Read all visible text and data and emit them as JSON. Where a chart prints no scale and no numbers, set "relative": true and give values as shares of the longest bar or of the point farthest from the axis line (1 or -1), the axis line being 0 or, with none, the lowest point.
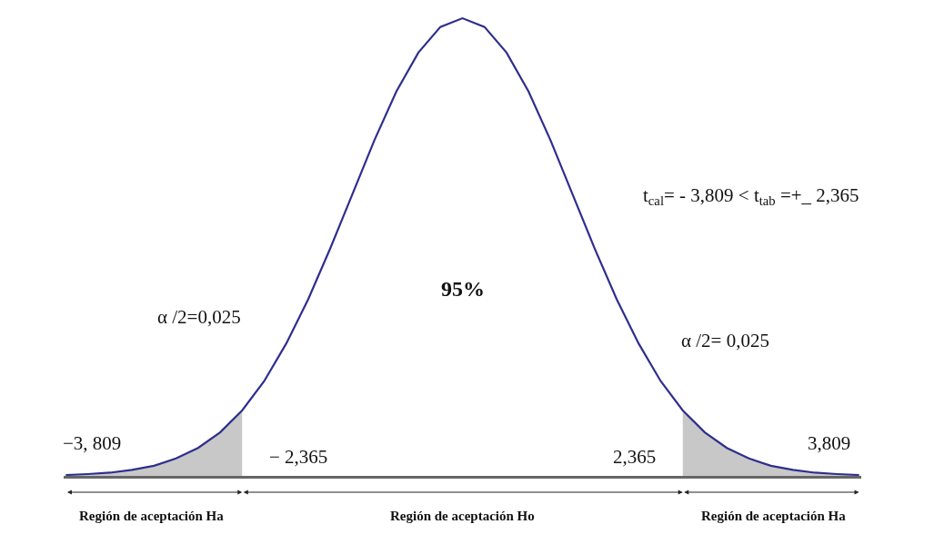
{
  "chart_data": {
    "type": "line",
    "relative": true,
    "marker": "none",
    "line_style": "solid",
    "categories": [
      null,
      null,
      null,
      null,
      null,
      null,
      null,
      null,
      null,
      null,
      null,
      null,
      null,
      null,
      null,
      null,
      null,
      null,
      null,
      null,
      null,
      null,
      null,
      null,
      null,
      null,
      null,
      null,
      null,
      null,
      null,
      null,
      null,
      null,
      null,
      null,
      null
    ],
    "series": [
      {
        "color": "#2e2e8f",
        "values": [
          0.002,
          0.004,
          0.007,
          0.013,
          0.022,
          0.038,
          0.061,
          0.095,
          0.143,
          0.207,
          0.289,
          0.386,
          0.497,
          0.615,
          0.733,
          0.84,
          0.925,
          0.981,
          1,
          0.981,
          0.925,
          0.84,
          0.733,
          0.615,
          0.497,
          0.386,
          0.289,
          0.207,
          0.143,
          0.095,
          0.061,
          0.038,
          0.022,
          0.013,
          0.007,
          0.004,
          0.002
        ]
      },
      {
        "type": "area",
        "color": "#c8c8c8",
        "values": [
          0.002,
          0.004,
          0.007,
          0.013,
          0.022,
          0.038,
          0.061,
          0.095,
          0.143,
          null,
          null,
          null,
          null,
          null,
          null,
          null,
          null,
          null,
          null,
          null,
          null,
          null,
          null,
          null,
          null,
          null,
          null,
          null,
          null,
          null,
          null,
          null,
          null,
          null,
          null,
          null,
          null
        ]
      },
      {
        "type": "area",
        "color": "#c8c8c8",
        "values": [
          null,
          null,
          null,
          null,
          null,
          null,
          null,
          null,
          null,
          null,
          null,
          null,
          null,
          null,
          null,
          null,
          null,
          null,
          null,
          null,
          null,
          null,
          null,
          null,
          null,
          null,
          null,
          null,
          0.143,
          0.095,
          0.061,
          0.038,
          0.022,
          0.013,
          0.007,
          0.004,
          0.002
        ]
      }
    ],
    "annotations": [
      "t$_{cal}$= - 3,809 < t$_{tab}$ =+_ 2,365",
      "95%",
      "α /2=0,025",
      "α /2= 0,025",
      "−3, 809",
      "− 2,365",
      "2,365",
      "3,809",
      "Región de aceptación Ha",
      "Región de aceptación Ho",
      "Región de aceptación Ha"
    ]
  }
}
